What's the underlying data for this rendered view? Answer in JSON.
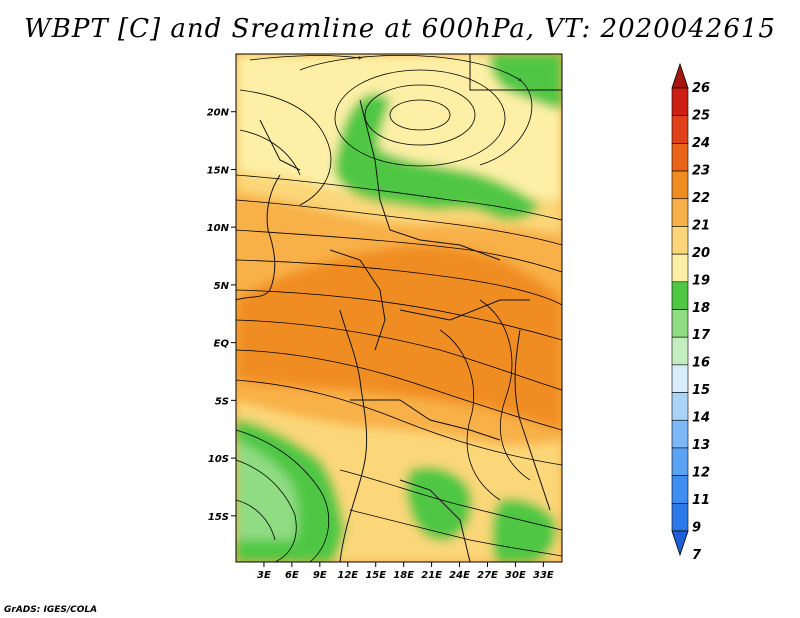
{
  "title": "WBPT [C] and Sreamline at 600hPa, VT: 2020042615",
  "credit": "GrADS: IGES/COLA",
  "map": {
    "lat_range": [
      -19,
      25
    ],
    "lon_range": [
      0,
      35
    ],
    "lat_ticks": [
      {
        "value": 20,
        "label": "20N"
      },
      {
        "value": 15,
        "label": "15N"
      },
      {
        "value": 10,
        "label": "10N"
      },
      {
        "value": 5,
        "label": "5N"
      },
      {
        "value": 0,
        "label": "EQ"
      },
      {
        "value": -5,
        "label": "5S"
      },
      {
        "value": -10,
        "label": "10S"
      },
      {
        "value": -15,
        "label": "15S"
      }
    ],
    "lon_ticks": [
      {
        "value": 3,
        "label": "3E"
      },
      {
        "value": 6,
        "label": "6E"
      },
      {
        "value": 9,
        "label": "9E"
      },
      {
        "value": 12,
        "label": "12E"
      },
      {
        "value": 15,
        "label": "15E"
      },
      {
        "value": 18,
        "label": "18E"
      },
      {
        "value": 21,
        "label": "21E"
      },
      {
        "value": 24,
        "label": "24E"
      },
      {
        "value": 27,
        "label": "27E"
      },
      {
        "value": 30,
        "label": "30E"
      },
      {
        "value": 33,
        "label": "33E"
      }
    ]
  },
  "colorbar": {
    "labels": [
      "7",
      "9",
      "11",
      "12",
      "13",
      "14",
      "15",
      "16",
      "17",
      "18",
      "19",
      "20",
      "21",
      "22",
      "23",
      "24",
      "25",
      "26"
    ],
    "colors": [
      "#1f5fd8",
      "#2b78e8",
      "#3d8ef0",
      "#5aa3f2",
      "#7cb8f5",
      "#a9d3f7",
      "#d8eefc",
      "#c4eec0",
      "#8fdc82",
      "#4fc744",
      "#fdf0a6",
      "#fbd779",
      "#f8b048",
      "#f08d21",
      "#ea6418",
      "#e0401a",
      "#cc1e12",
      "#a5140d"
    ]
  }
}
